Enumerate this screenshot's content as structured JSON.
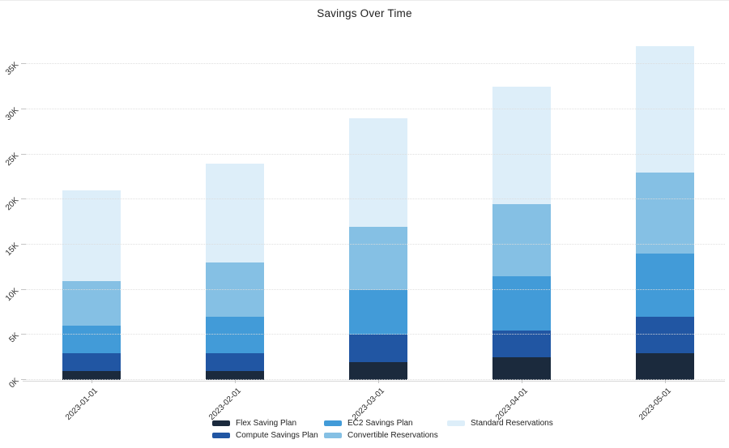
{
  "title": "Savings Over Time",
  "chart_data": {
    "type": "bar",
    "stacked": true,
    "title": "Savings Over Time",
    "xlabel": "",
    "ylabel": "",
    "categories": [
      "2023-01-01",
      "2023-02-01",
      "2023-03-01",
      "2023-04-01",
      "2023-05-01"
    ],
    "series": [
      {
        "name": "Flex Saving Plan",
        "color": "#1b2a3d",
        "values": [
          1000,
          1000,
          2000,
          2500,
          3000
        ]
      },
      {
        "name": "Compute Savings Plan",
        "color": "#2156a3",
        "values": [
          2000,
          2000,
          3000,
          3000,
          4000
        ]
      },
      {
        "name": "EC2 Savings Plan",
        "color": "#429bd8",
        "values": [
          3000,
          4000,
          5000,
          6000,
          7000
        ]
      },
      {
        "name": "Convertible Reservations",
        "color": "#85c0e4",
        "values": [
          5000,
          6000,
          7000,
          8000,
          9000
        ]
      },
      {
        "name": "Standard Reservations",
        "color": "#ddeef9",
        "values": [
          10000,
          11000,
          12000,
          13000,
          14000
        ]
      }
    ],
    "stack_totals": [
      21000,
      24000,
      29000,
      32500,
      37000
    ],
    "ylim": [
      0,
      38600
    ],
    "yticks": [
      {
        "value": 0,
        "label": "0K"
      },
      {
        "value": 5000,
        "label": "5K"
      },
      {
        "value": 10000,
        "label": "10K"
      },
      {
        "value": 15000,
        "label": "15K"
      },
      {
        "value": 20000,
        "label": "20K"
      },
      {
        "value": 25000,
        "label": "25K"
      },
      {
        "value": 30000,
        "label": "30K"
      },
      {
        "value": 35000,
        "label": "35K"
      }
    ],
    "grid": "horizontal-dotted",
    "legend_position": "bottom",
    "tick_label_rotation_deg": 45
  }
}
